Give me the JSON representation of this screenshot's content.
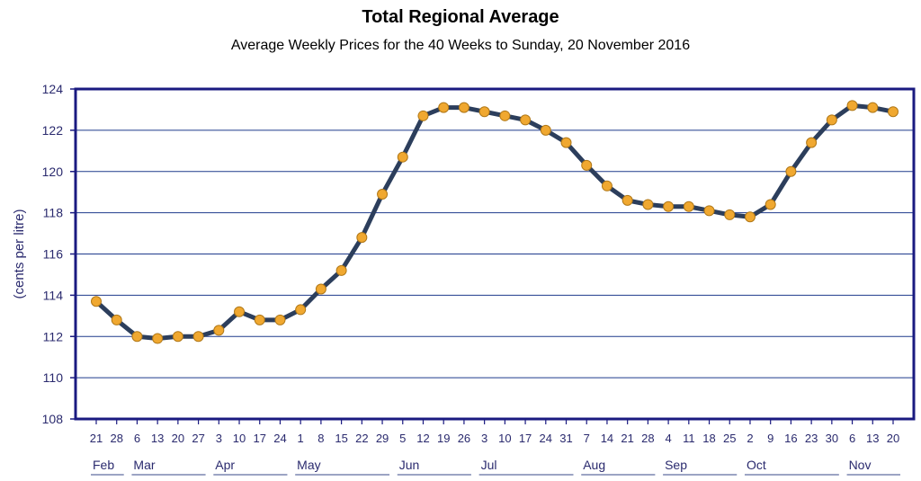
{
  "chart_data": {
    "type": "line",
    "title": "Total Regional Average",
    "subtitle": "Average Weekly Prices for the 40 Weeks to Sunday, 20 November 2016",
    "xlabel": "",
    "ylabel": "(cents per litre)",
    "ylim": [
      108,
      124
    ],
    "yticks": [
      108,
      110,
      112,
      114,
      116,
      118,
      120,
      122,
      124
    ],
    "grid": true,
    "legend": "none",
    "colors": {
      "line": "#2c3e5c",
      "marker": "#f0a830",
      "marker_edge": "#b07818",
      "frame": "#1a1a80",
      "grid": "#1e3a8c",
      "text": "#2a2a6e"
    },
    "x": [
      "21",
      "28",
      "6",
      "13",
      "20",
      "27",
      "3",
      "10",
      "17",
      "24",
      "1",
      "8",
      "15",
      "22",
      "29",
      "5",
      "12",
      "19",
      "26",
      "3",
      "10",
      "17",
      "24",
      "31",
      "7",
      "14",
      "21",
      "28",
      "4",
      "11",
      "18",
      "25",
      "2",
      "9",
      "16",
      "23",
      "30",
      "6",
      "13",
      "20"
    ],
    "months": [
      {
        "label": "Feb",
        "start": 0,
        "end": 1
      },
      {
        "label": "Mar",
        "start": 2,
        "end": 5
      },
      {
        "label": "Apr",
        "start": 6,
        "end": 9
      },
      {
        "label": "May",
        "start": 10,
        "end": 14
      },
      {
        "label": "Jun",
        "start": 15,
        "end": 18
      },
      {
        "label": "Jul",
        "start": 19,
        "end": 23
      },
      {
        "label": "Aug",
        "start": 24,
        "end": 27
      },
      {
        "label": "Sep",
        "start": 28,
        "end": 31
      },
      {
        "label": "Oct",
        "start": 32,
        "end": 36
      },
      {
        "label": "Nov",
        "start": 37,
        "end": 39
      }
    ],
    "series": [
      {
        "values": [
          113.7,
          112.8,
          112.0,
          111.9,
          112.0,
          112.0,
          112.3,
          113.2,
          112.8,
          112.8,
          113.3,
          114.3,
          115.2,
          116.8,
          118.9,
          120.7,
          122.7,
          123.1,
          123.1,
          122.9,
          122.7,
          122.5,
          122.0,
          121.4,
          120.3,
          119.3,
          118.6,
          118.4,
          118.3,
          118.3,
          118.1,
          117.9,
          117.8,
          118.4,
          120.0,
          121.4,
          122.5,
          123.2,
          123.1,
          122.9
        ]
      }
    ]
  }
}
